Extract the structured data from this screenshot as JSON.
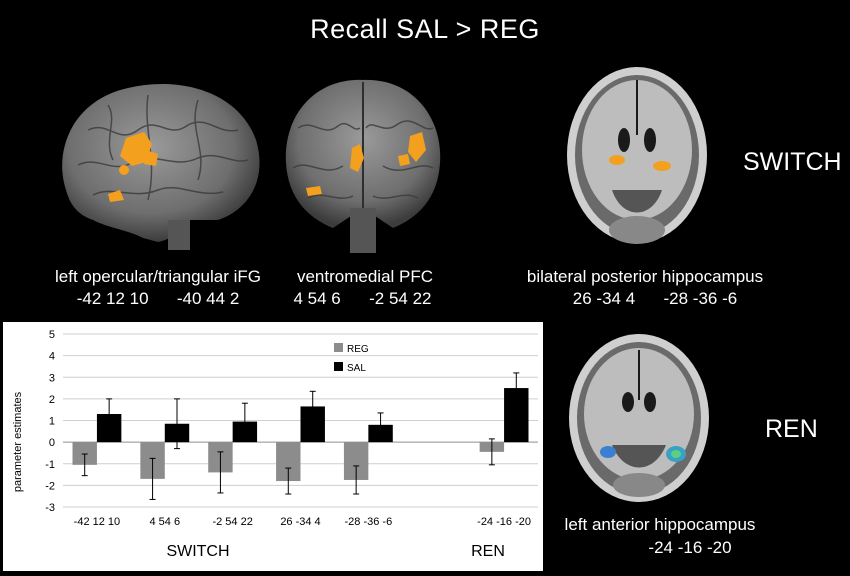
{
  "title": "Recall  SAL > REG",
  "panels": {
    "ifg": {
      "name": "left opercular/triangular iFG",
      "coords": "-42 12 10      -40 44 2"
    },
    "pfc": {
      "name": "ventromedial PFC",
      "coords": "4 54 6      -2 54 22"
    },
    "hippo": {
      "name": "bilateral posterior hippocampus",
      "coords": "26 -34 4      -28 -36 -6"
    },
    "anterior": {
      "name": "left anterior hippocampus",
      "coords": "-24 -16 -20"
    }
  },
  "side_labels": {
    "switch": "SWITCH",
    "ren": "REN"
  },
  "colors": {
    "reg": "#8c8c8c",
    "sal": "#000000",
    "activation": "#f2a01e",
    "ren_blob": "#3aa0c8",
    "background": "#000000"
  },
  "chart_data": {
    "type": "bar",
    "categories": [
      "-42 12 10",
      "4 54 6",
      "-2 54 22",
      "26 -34 4",
      "-28 -36 -6",
      "-24 -16 -20"
    ],
    "groups": [
      {
        "label": "SWITCH",
        "categories": [
          "-42 12 10",
          "4 54 6",
          "-2 54 22",
          "26 -34 4",
          "-28 -36 -6"
        ]
      },
      {
        "label": "REN",
        "categories": [
          "-24 -16 -20"
        ]
      }
    ],
    "series": [
      {
        "name": "REG",
        "color": "#8c8c8c",
        "values": [
          -1.05,
          -1.7,
          -1.4,
          -1.8,
          -1.75,
          -0.45
        ],
        "errors": [
          0.5,
          0.95,
          0.95,
          0.6,
          0.65,
          0.6
        ]
      },
      {
        "name": "SAL",
        "color": "#000000",
        "values": [
          1.3,
          0.85,
          0.95,
          1.65,
          0.8,
          2.5
        ],
        "errors": [
          0.7,
          1.15,
          0.85,
          0.7,
          0.55,
          0.7
        ]
      }
    ],
    "ylabel": "parameter estimates",
    "xlabel": "",
    "ylim": [
      -3,
      5
    ],
    "yticks": [
      5,
      4,
      3,
      2,
      1,
      0,
      -1,
      -2,
      -3
    ],
    "grid": true,
    "legend": "top-center"
  }
}
